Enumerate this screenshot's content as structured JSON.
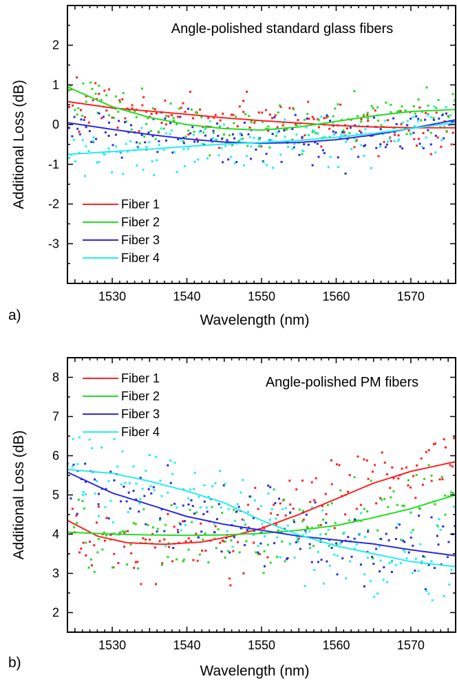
{
  "chart_data": [
    {
      "type": "scatter",
      "panel_label": "a)",
      "title": "Angle-polished standard glass fibers",
      "xlabel": "Wavelength (nm)",
      "ylabel": "Additional Loss (dB)",
      "xlim": [
        1524,
        1576
      ],
      "ylim": [
        -4.0,
        3.0
      ],
      "xticks": [
        1530,
        1540,
        1550,
        1560,
        1570
      ],
      "yticks": [
        -3,
        -2,
        -1,
        0,
        1,
        2
      ],
      "legend_position": "lower-left",
      "series": [
        {
          "name": "Fiber 1",
          "color": "#ff2020",
          "fit": {
            "x": [
              1524,
              1530,
              1535,
              1540,
              1545,
              1550,
              1555,
              1560,
              1565,
              1570,
              1576
            ],
            "y": [
              0.58,
              0.42,
              0.34,
              0.26,
              0.17,
              0.1,
              0.04,
              -0.02,
              -0.06,
              -0.08,
              -0.08
            ]
          },
          "scatter_center": [
            0.6,
            0.35,
            0.3,
            0.25,
            0.12,
            0.05,
            0.0,
            -0.05,
            -0.1,
            -0.1,
            -0.05
          ],
          "scatter_spread": 0.55
        },
        {
          "name": "Fiber 2",
          "color": "#22dd22",
          "fit": {
            "x": [
              1524,
              1530,
              1535,
              1540,
              1545,
              1550,
              1555,
              1560,
              1565,
              1570,
              1576
            ],
            "y": [
              0.95,
              0.45,
              0.18,
              0.0,
              -0.1,
              -0.14,
              -0.06,
              0.08,
              0.22,
              0.33,
              0.38
            ]
          },
          "scatter_center": [
            1.0,
            0.45,
            0.15,
            0.0,
            -0.1,
            -0.15,
            -0.05,
            0.1,
            0.25,
            0.35,
            0.4
          ],
          "scatter_spread": 0.55
        },
        {
          "name": "Fiber 3",
          "color": "#2b2bdd",
          "fit": {
            "x": [
              1524,
              1530,
              1535,
              1540,
              1545,
              1550,
              1555,
              1560,
              1565,
              1570,
              1576
            ],
            "y": [
              0.05,
              -0.12,
              -0.25,
              -0.36,
              -0.44,
              -0.47,
              -0.45,
              -0.38,
              -0.26,
              -0.1,
              0.12
            ]
          },
          "scatter_center": [
            0.0,
            -0.15,
            -0.3,
            -0.4,
            -0.5,
            -0.5,
            -0.45,
            -0.4,
            -0.3,
            -0.1,
            0.1
          ],
          "scatter_spread": 0.55
        },
        {
          "name": "Fiber 4",
          "color": "#22eeee",
          "fit": {
            "x": [
              1524,
              1530,
              1535,
              1540,
              1545,
              1550,
              1555,
              1560,
              1565,
              1570,
              1576
            ],
            "y": [
              -0.75,
              -0.68,
              -0.62,
              -0.55,
              -0.49,
              -0.45,
              -0.4,
              -0.32,
              -0.22,
              -0.1,
              0.05
            ]
          },
          "scatter_center": [
            -0.8,
            -0.7,
            -0.65,
            -0.55,
            -0.5,
            -0.45,
            -0.4,
            -0.35,
            -0.25,
            -0.1,
            0.05
          ],
          "scatter_spread": 0.6
        }
      ]
    },
    {
      "type": "scatter",
      "panel_label": "b)",
      "title": "Angle-polished PM fibers",
      "xlabel": "Wavelength (nm)",
      "ylabel": "Additional Loss (dB)",
      "xlim": [
        1524,
        1576
      ],
      "ylim": [
        1.5,
        8.5
      ],
      "xticks": [
        1530,
        1540,
        1550,
        1560,
        1570
      ],
      "yticks": [
        2,
        3,
        4,
        5,
        6,
        7,
        8
      ],
      "legend_position": "top-left",
      "series": [
        {
          "name": "Fiber 1",
          "color": "#ff2020",
          "fit": {
            "x": [
              1524,
              1528,
              1532,
              1537,
              1542,
              1546,
              1550,
              1555,
              1560,
              1565,
              1570,
              1576
            ],
            "y": [
              4.35,
              3.95,
              3.78,
              3.74,
              3.8,
              3.95,
              4.15,
              4.5,
              4.9,
              5.3,
              5.6,
              5.85
            ]
          },
          "scatter_center": [
            4.3,
            3.9,
            3.8,
            3.7,
            3.8,
            3.9,
            4.1,
            4.5,
            4.9,
            5.3,
            5.6,
            5.9
          ],
          "scatter_spread": 0.9
        },
        {
          "name": "Fiber 2",
          "color": "#22dd22",
          "fit": {
            "x": [
              1524,
              1530,
              1535,
              1540,
              1545,
              1550,
              1555,
              1560,
              1565,
              1570,
              1576
            ],
            "y": [
              4.05,
              4.0,
              3.98,
              3.97,
              3.98,
              4.02,
              4.1,
              4.22,
              4.42,
              4.65,
              5.0
            ]
          },
          "scatter_center": [
            4.1,
            4.0,
            3.95,
            3.9,
            3.95,
            4.0,
            4.1,
            4.2,
            4.4,
            4.6,
            4.9
          ],
          "scatter_spread": 0.9
        },
        {
          "name": "Fiber 3",
          "color": "#2b2bdd",
          "fit": {
            "x": [
              1524,
              1530,
              1535,
              1540,
              1545,
              1550,
              1555,
              1560,
              1565,
              1570,
              1576
            ],
            "y": [
              5.58,
              5.05,
              4.75,
              4.45,
              4.25,
              4.1,
              3.95,
              3.85,
              3.75,
              3.6,
              3.45
            ]
          },
          "scatter_center": [
            5.5,
            5.0,
            4.7,
            4.5,
            4.3,
            4.1,
            3.95,
            3.85,
            3.75,
            3.6,
            3.45
          ],
          "scatter_spread": 0.9
        },
        {
          "name": "Fiber 4",
          "color": "#22eeee",
          "fit": {
            "x": [
              1524,
              1530,
              1535,
              1540,
              1545,
              1550,
              1555,
              1560,
              1565,
              1570,
              1576
            ],
            "y": [
              5.65,
              5.55,
              5.35,
              5.1,
              4.8,
              4.35,
              3.98,
              3.7,
              3.5,
              3.3,
              3.17
            ]
          },
          "scatter_center": [
            5.8,
            5.6,
            5.35,
            5.1,
            4.8,
            4.4,
            4.0,
            3.75,
            3.5,
            3.3,
            3.2
          ],
          "scatter_spread": 1.0
        }
      ]
    }
  ]
}
